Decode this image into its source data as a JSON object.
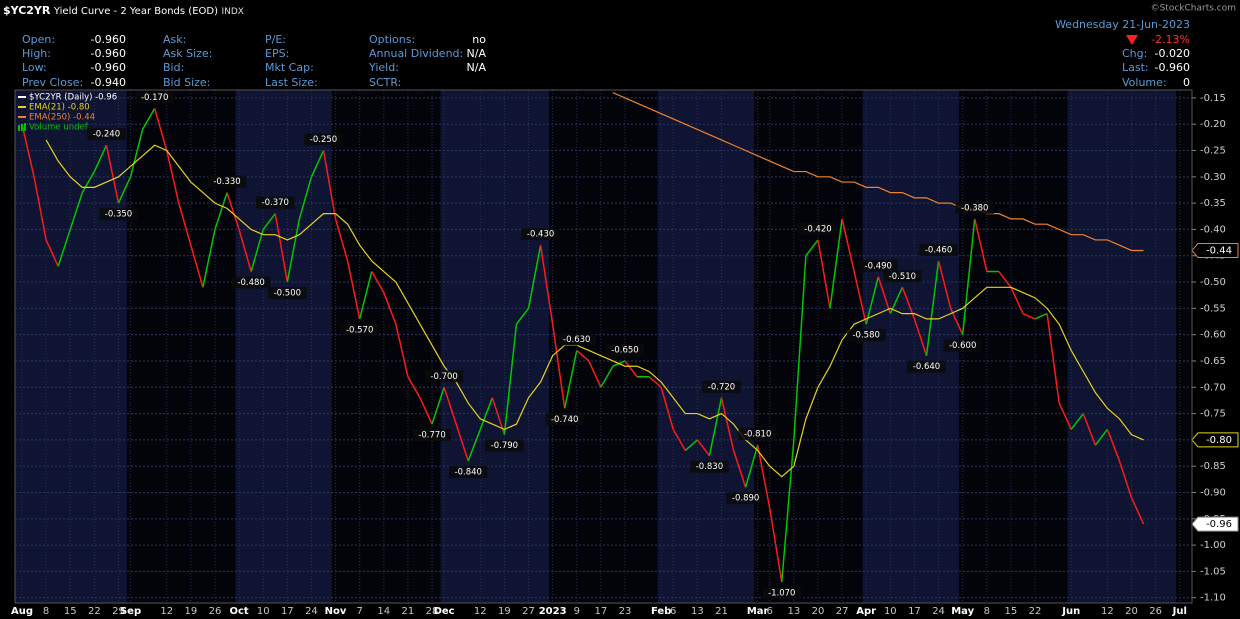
{
  "chart_data": {
    "type": "line",
    "header": {
      "symbol": "$YC2YR",
      "name": "Yield Curve - 2 Year Bonds (EOD)",
      "exchange": "INDX",
      "copyright": "©StockCharts.com",
      "date": "Wednesday 21-Jun-2023",
      "change_pct": "-2.13%",
      "quote_columns": [
        [
          {
            "label": "Open:",
            "value": "-0.960"
          },
          {
            "label": "High:",
            "value": "-0.960"
          },
          {
            "label": "Low:",
            "value": "-0.960"
          },
          {
            "label": "Prev Close:",
            "value": "-0.940"
          }
        ],
        [
          {
            "label": "Ask:"
          },
          {
            "label": "Ask Size:"
          },
          {
            "label": "Bid:"
          },
          {
            "label": "Bid Size:"
          }
        ],
        [
          {
            "label": "P/E:"
          },
          {
            "label": "EPS:"
          },
          {
            "label": "Mkt Cap:"
          },
          {
            "label": "Last Size:"
          }
        ],
        [
          {
            "label": "Options:",
            "value": "no"
          },
          {
            "label": "Annual Dividend:",
            "value": "N/A"
          },
          {
            "label": "Yield:",
            "value": "N/A"
          },
          {
            "label": "SCTR:"
          }
        ]
      ],
      "right_quote": [
        {
          "label": "Chg:",
          "value": "-0.020"
        },
        {
          "label": "Last:",
          "value": "-0.960"
        },
        {
          "label": "Volume:",
          "value": "0"
        }
      ]
    },
    "volume_label": "Volume undef",
    "volume_color": "#00c000",
    "categories": [
      "Aug",
      null,
      "8",
      null,
      "15",
      null,
      "22",
      null,
      "29",
      "Sep",
      null,
      null,
      "12",
      null,
      "19",
      null,
      "26",
      null,
      "Oct",
      null,
      "10",
      null,
      "17",
      null,
      "24",
      null,
      "Nov",
      null,
      "7",
      null,
      "14",
      null,
      "21",
      null,
      "28",
      "Dec",
      null,
      null,
      "12",
      null,
      "19",
      null,
      "27",
      null,
      "2023",
      null,
      "9",
      null,
      "17",
      null,
      "23",
      null,
      null,
      "Feb",
      "6",
      null,
      "13",
      null,
      "21",
      null,
      null,
      "Mar",
      "6",
      null,
      "13",
      null,
      "20",
      null,
      "27",
      null,
      "Apr",
      null,
      "10",
      null,
      "17",
      null,
      "24",
      null,
      "May",
      null,
      "8",
      null,
      "15",
      null,
      "22",
      null,
      null,
      "Jun",
      null,
      null,
      "12",
      null,
      "20",
      null,
      "26",
      null,
      "Jul",
      null
    ],
    "series": [
      {
        "name": "$YC2YR (Daily) -0.96",
        "color": "#ffffff",
        "up_color": "#00c800",
        "down_color": "#ff1a1a",
        "values": [
          -0.2,
          -0.3,
          -0.42,
          -0.47,
          -0.4,
          -0.33,
          -0.29,
          -0.24,
          -0.35,
          -0.3,
          -0.21,
          -0.17,
          -0.25,
          -0.35,
          -0.43,
          -0.51,
          -0.4,
          -0.33,
          -0.4,
          -0.48,
          -0.4,
          -0.37,
          -0.5,
          -0.38,
          -0.3,
          -0.25,
          -0.38,
          -0.46,
          -0.57,
          -0.48,
          -0.52,
          -0.58,
          -0.68,
          -0.72,
          -0.77,
          -0.7,
          -0.77,
          -0.84,
          -0.78,
          -0.72,
          -0.79,
          -0.58,
          -0.55,
          -0.43,
          -0.58,
          -0.74,
          -0.63,
          -0.65,
          -0.7,
          -0.66,
          -0.65,
          -0.68,
          -0.68,
          -0.7,
          -0.78,
          -0.82,
          -0.8,
          -0.83,
          -0.72,
          -0.82,
          -0.89,
          -0.81,
          -0.93,
          -1.07,
          -0.8,
          -0.45,
          -0.42,
          -0.55,
          -0.38,
          -0.48,
          -0.58,
          -0.49,
          -0.56,
          -0.51,
          -0.57,
          -0.64,
          -0.46,
          -0.55,
          -0.6,
          -0.38,
          -0.48,
          -0.48,
          -0.51,
          -0.56,
          -0.57,
          -0.56,
          -0.73,
          -0.78,
          -0.75,
          -0.81,
          -0.78,
          -0.84,
          -0.91,
          -0.96,
          null,
          null,
          null,
          null
        ],
        "value_labels": [
          null,
          null,
          null,
          null,
          null,
          null,
          null,
          "-0.240",
          "-0.350",
          null,
          null,
          "-0.170",
          null,
          null,
          null,
          null,
          null,
          "-0.330",
          null,
          "-0.480",
          null,
          "-0.370",
          "-0.500",
          null,
          null,
          "-0.250",
          null,
          null,
          "-0.570",
          null,
          null,
          null,
          null,
          null,
          "-0.770",
          "-0.700",
          null,
          "-0.840",
          null,
          null,
          "-0.790",
          null,
          null,
          "-0.430",
          null,
          "-0.740",
          "-0.630",
          null,
          null,
          null,
          "-0.650",
          null,
          null,
          null,
          null,
          null,
          null,
          "-0.830",
          "-0.720",
          null,
          "-0.890",
          "-0.810",
          null,
          "-1.070",
          null,
          null,
          "-0.420",
          null,
          null,
          null,
          "-0.580",
          "-0.490",
          null,
          "-0.510",
          null,
          "-0.640",
          "-0.460",
          null,
          "-0.600",
          "-0.380",
          null,
          null,
          null,
          null,
          null,
          null,
          null,
          null,
          null,
          null,
          null,
          null,
          null,
          "-0.96",
          null,
          null,
          null,
          null
        ]
      },
      {
        "name": "EMA(21) -0.80",
        "color": "#e6d21e",
        "values": [
          null,
          null,
          -0.23,
          -0.27,
          -0.3,
          -0.32,
          -0.32,
          -0.31,
          -0.3,
          -0.28,
          -0.26,
          -0.24,
          -0.25,
          -0.28,
          -0.31,
          -0.33,
          -0.35,
          -0.36,
          -0.38,
          -0.4,
          -0.41,
          -0.41,
          -0.42,
          -0.41,
          -0.39,
          -0.37,
          -0.37,
          -0.39,
          -0.43,
          -0.46,
          -0.48,
          -0.5,
          -0.54,
          -0.58,
          -0.62,
          -0.66,
          -0.69,
          -0.73,
          -0.76,
          -0.77,
          -0.78,
          -0.77,
          -0.72,
          -0.69,
          -0.64,
          -0.62,
          -0.62,
          -0.63,
          -0.64,
          -0.65,
          -0.66,
          -0.66,
          -0.67,
          -0.69,
          -0.72,
          -0.75,
          -0.75,
          -0.76,
          -0.75,
          -0.77,
          -0.8,
          -0.82,
          -0.85,
          -0.87,
          -0.85,
          -0.76,
          -0.7,
          -0.66,
          -0.61,
          -0.58,
          -0.57,
          -0.56,
          -0.55,
          -0.56,
          -0.56,
          -0.57,
          -0.57,
          -0.56,
          -0.55,
          -0.53,
          -0.51,
          -0.51,
          -0.51,
          -0.52,
          -0.53,
          -0.55,
          -0.58,
          -0.63,
          -0.67,
          -0.71,
          -0.74,
          -0.76,
          -0.79,
          -0.8,
          null,
          null,
          null,
          null
        ],
        "value_labels": [
          null,
          null,
          null,
          null,
          null,
          null,
          null,
          null,
          null,
          null,
          null,
          null,
          null,
          null,
          null,
          null,
          null,
          null,
          null,
          null,
          null,
          null,
          null,
          null,
          null,
          null,
          null,
          null,
          null,
          null,
          null,
          null,
          null,
          null,
          null,
          null,
          null,
          null,
          null,
          null,
          null,
          null,
          null,
          null,
          null,
          null,
          null,
          null,
          null,
          null,
          null,
          null,
          null,
          null,
          null,
          null,
          null,
          null,
          null,
          null,
          null,
          null,
          null,
          null,
          null,
          null,
          null,
          null,
          null,
          null,
          null,
          null,
          null,
          null,
          null,
          null,
          null,
          null,
          null,
          null,
          null,
          null,
          null,
          null,
          null,
          null,
          null,
          null,
          null,
          null,
          null,
          null,
          null,
          "-0.80",
          null,
          null,
          null,
          null
        ]
      },
      {
        "name": "EMA(250) -0.44",
        "color": "#f0822d",
        "values": [
          null,
          null,
          null,
          null,
          null,
          null,
          null,
          null,
          null,
          null,
          null,
          null,
          null,
          null,
          null,
          null,
          null,
          null,
          null,
          null,
          null,
          null,
          null,
          null,
          null,
          null,
          null,
          null,
          null,
          null,
          null,
          null,
          null,
          null,
          null,
          null,
          null,
          null,
          null,
          null,
          null,
          null,
          null,
          null,
          null,
          null,
          null,
          null,
          null,
          -0.14,
          -0.15,
          -0.16,
          -0.17,
          -0.18,
          -0.19,
          -0.2,
          -0.21,
          -0.22,
          -0.23,
          -0.24,
          -0.25,
          -0.26,
          -0.27,
          -0.28,
          -0.29,
          -0.29,
          -0.3,
          -0.3,
          -0.31,
          -0.31,
          -0.32,
          -0.32,
          -0.33,
          -0.33,
          -0.34,
          -0.34,
          -0.35,
          -0.35,
          -0.36,
          -0.36,
          -0.37,
          -0.37,
          -0.38,
          -0.38,
          -0.39,
          -0.39,
          -0.4,
          -0.41,
          -0.41,
          -0.42,
          -0.42,
          -0.43,
          -0.44,
          -0.44,
          null,
          null,
          null,
          null
        ],
        "value_labels": [
          null,
          null,
          null,
          null,
          null,
          null,
          null,
          null,
          null,
          null,
          null,
          null,
          null,
          null,
          null,
          null,
          null,
          null,
          null,
          null,
          null,
          null,
          null,
          null,
          null,
          null,
          null,
          null,
          null,
          null,
          null,
          null,
          null,
          null,
          null,
          null,
          null,
          null,
          null,
          null,
          null,
          null,
          null,
          null,
          null,
          null,
          null,
          null,
          null,
          null,
          null,
          null,
          null,
          null,
          null,
          null,
          null,
          null,
          null,
          null,
          null,
          null,
          null,
          null,
          null,
          null,
          null,
          null,
          null,
          null,
          null,
          null,
          null,
          null,
          null,
          null,
          null,
          null,
          null,
          null,
          null,
          null,
          null,
          null,
          null,
          null,
          null,
          null,
          null,
          null,
          null,
          null,
          null,
          "-0.44",
          null,
          null,
          null,
          null
        ]
      }
    ],
    "ylim": [
      -1.11,
      -0.135
    ],
    "yticks": [
      -0.15,
      {
        "value": -0.2,
        "label": "-0.20"
      },
      -0.25,
      {
        "value": -0.3,
        "label": "-0.30"
      },
      -0.35,
      {
        "value": -0.4,
        "label": "-0.40"
      },
      -0.45,
      {
        "value": -0.5,
        "label": "-0.50"
      },
      -0.55,
      {
        "value": -0.6,
        "label": "-0.60"
      },
      -0.65,
      {
        "value": -0.7,
        "label": "-0.70"
      },
      -0.75,
      {
        "value": -0.8,
        "label": "-0.80"
      },
      -0.85,
      {
        "value": -0.9,
        "label": "-0.90"
      },
      -0.95,
      {
        "value": -1,
        "label": "-1.00"
      },
      -1.05,
      {
        "value": -1.1,
        "label": "-1.10"
      }
    ],
    "y_axis_side": "right",
    "grid": true,
    "legend": "top-left",
    "month_shading": [
      "#0e1431",
      "#03040a"
    ]
  }
}
